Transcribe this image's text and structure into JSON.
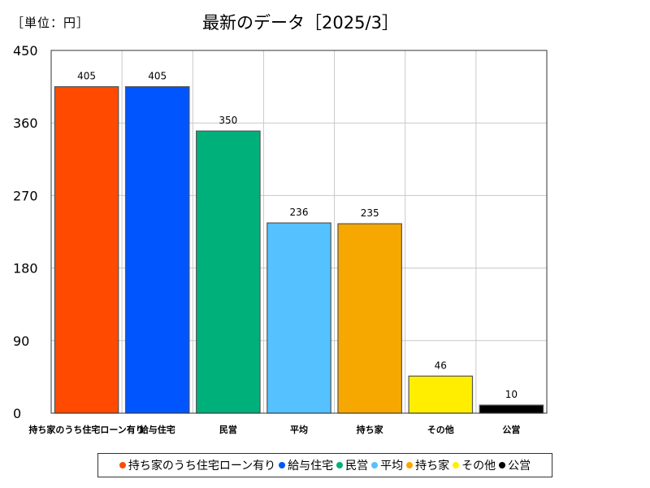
{
  "header": {
    "unit_label": "［単位：円］",
    "title": "最新のデータ［2025/3］"
  },
  "chart_data": {
    "type": "bar",
    "title": "最新のデータ［2025/3］",
    "unit": "円",
    "categories": [
      "持ち家のうち住宅ローン有り",
      "給与住宅",
      "民営",
      "平均",
      "持ち家",
      "その他",
      "公営"
    ],
    "category_tick_labels": [
      "持ち家のうち住宅ローン有り",
      "給与住宅",
      "民営",
      "平均",
      "持ち家",
      "その他",
      "公営"
    ],
    "values": [
      405,
      405,
      350,
      236,
      235,
      46,
      10
    ],
    "colors": [
      "#ff4a00",
      "#0055ff",
      "#00b07a",
      "#55c1ff",
      "#f7a800",
      "#ffee00",
      "#000000"
    ],
    "ylim": [
      0,
      450
    ],
    "yticks": [
      0,
      90,
      180,
      270,
      360,
      450
    ],
    "grid": true,
    "legend_position": "bottom"
  },
  "legend": {
    "items": [
      {
        "label": "持ち家のうち住宅ローン有り",
        "color": "#ff4a00"
      },
      {
        "label": "給与住宅",
        "color": "#0055ff"
      },
      {
        "label": "民営",
        "color": "#00b07a"
      },
      {
        "label": "平均",
        "color": "#55c1ff"
      },
      {
        "label": "持ち家",
        "color": "#f7a800"
      },
      {
        "label": "その他",
        "color": "#ffee00"
      },
      {
        "label": "公営",
        "color": "#000000"
      }
    ]
  }
}
